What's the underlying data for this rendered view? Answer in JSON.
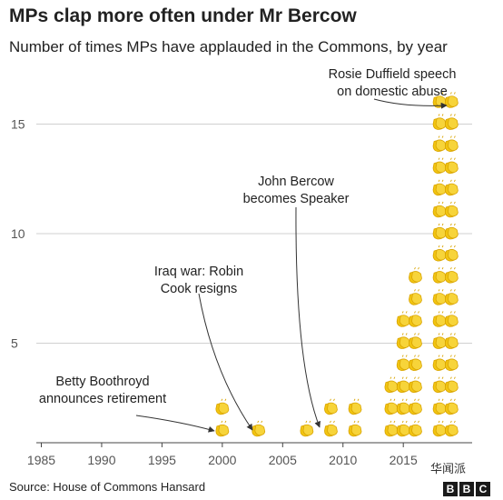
{
  "title": "MPs clap more often under Mr Bercow",
  "subtitle": "Number of times MPs have applauded in the Commons, by year",
  "source": "Source: House of Commons Hansard",
  "watermark": "华闻派",
  "brand": [
    "B",
    "B",
    "C"
  ],
  "colors": {
    "clap_icon": "#f2c511",
    "clap_icon_outline": "#d9a400",
    "grid": "#d0d0d0",
    "text": "#222222"
  },
  "chart_data": {
    "type": "scatter",
    "icon": "clapping-hands-icon",
    "title": "MPs clap more often under Mr Bercow",
    "subtitle": "Number of times MPs have applauded in the Commons, by year",
    "xlabel": "",
    "ylabel": "",
    "xlim": [
      1983,
      2020
    ],
    "ylim": [
      0,
      17
    ],
    "xticks": [
      1985,
      1990,
      1995,
      2000,
      2005,
      2010,
      2015
    ],
    "yticks": [
      5,
      10,
      15
    ],
    "grid": true,
    "series": [
      {
        "x": [
          2000,
          2003,
          2007,
          2009,
          2011,
          2014,
          2015,
          2016,
          2018,
          2019
        ],
        "y": [
          2,
          1,
          1,
          2,
          2,
          3,
          6,
          8,
          16,
          16
        ]
      }
    ],
    "annotations": [
      {
        "text": [
          "Betty Boothroyd",
          "announces retirement"
        ],
        "x": 2000,
        "y": 1
      },
      {
        "text": [
          "Iraq war: Robin",
          "Cook resigns"
        ],
        "x": 2003,
        "y": 1
      },
      {
        "text": [
          "John Bercow",
          "becomes Speaker"
        ],
        "x": 2009,
        "y": 1
      },
      {
        "text": [
          "Rosie Duffield speech",
          "on domestic abuse"
        ],
        "x": 2019,
        "y": 16
      }
    ]
  }
}
